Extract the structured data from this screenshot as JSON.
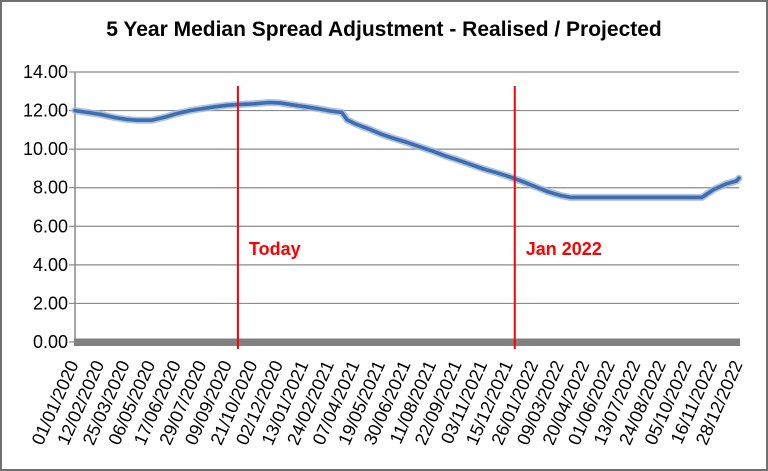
{
  "chart_data": {
    "type": "line",
    "title": "5 Year Median Spread Adjustment - Realised / Projected",
    "categories": [
      "01/01/2020",
      "12/02/2020",
      "25/03/2020",
      "06/05/2020",
      "17/06/2020",
      "29/07/2020",
      "09/09/2020",
      "21/10/2020",
      "02/12/2020",
      "13/01/2021",
      "24/02/2021",
      "07/04/2021",
      "19/05/2021",
      "30/06/2021",
      "11/08/2021",
      "22/09/2021",
      "03/11/2021",
      "15/12/2021",
      "26/01/2022",
      "09/03/2022",
      "20/04/2022",
      "01/06/2022",
      "13/07/2022",
      "24/08/2022",
      "05/10/2022",
      "16/11/2022",
      "28/12/2022"
    ],
    "values": [
      12.0,
      11.8,
      11.55,
      11.5,
      11.85,
      12.1,
      12.28,
      12.35,
      12.4,
      12.2,
      11.98,
      11.3,
      10.77,
      10.35,
      9.9,
      9.43,
      8.97,
      8.57,
      8.07,
      7.6,
      7.5,
      7.5,
      7.5,
      7.5,
      7.5,
      7.9,
      8.5
    ],
    "draw_points": [
      [
        0,
        12.0
      ],
      [
        0.5,
        11.9
      ],
      [
        1,
        11.8
      ],
      [
        1.5,
        11.65
      ],
      [
        2,
        11.55
      ],
      [
        2.4,
        11.5
      ],
      [
        3,
        11.5
      ],
      [
        3.5,
        11.65
      ],
      [
        4,
        11.85
      ],
      [
        4.5,
        12.0
      ],
      [
        5,
        12.1
      ],
      [
        5.5,
        12.2
      ],
      [
        6,
        12.28
      ],
      [
        6.5,
        12.32
      ],
      [
        7,
        12.35
      ],
      [
        7.6,
        12.42
      ],
      [
        8,
        12.4
      ],
      [
        8.5,
        12.3
      ],
      [
        9,
        12.2
      ],
      [
        9.5,
        12.1
      ],
      [
        10,
        11.98
      ],
      [
        10.45,
        11.9
      ],
      [
        10.65,
        11.52
      ],
      [
        11,
        11.3
      ],
      [
        11.5,
        11.05
      ],
      [
        12,
        10.77
      ],
      [
        12.5,
        10.55
      ],
      [
        13,
        10.35
      ],
      [
        13.5,
        10.12
      ],
      [
        14,
        9.9
      ],
      [
        14.5,
        9.65
      ],
      [
        15,
        9.43
      ],
      [
        15.5,
        9.2
      ],
      [
        16,
        8.97
      ],
      [
        16.5,
        8.78
      ],
      [
        17,
        8.57
      ],
      [
        17.5,
        8.33
      ],
      [
        18,
        8.07
      ],
      [
        18.5,
        7.8
      ],
      [
        19,
        7.6
      ],
      [
        19.4,
        7.5
      ],
      [
        20,
        7.5
      ],
      [
        21,
        7.5
      ],
      [
        22,
        7.5
      ],
      [
        23,
        7.5
      ],
      [
        24,
        7.5
      ],
      [
        24.55,
        7.5
      ],
      [
        25,
        7.9
      ],
      [
        25.5,
        8.2
      ],
      [
        25.9,
        8.35
      ],
      [
        26,
        8.5
      ]
    ],
    "ylim": [
      0,
      14
    ],
    "ytick_step": 2,
    "ytick_labels": [
      "0.00",
      "2.00",
      "4.00",
      "6.00",
      "8.00",
      "10.00",
      "12.00",
      "14.00"
    ],
    "grid": true,
    "legend": "none",
    "annotations": [
      {
        "label": "Today",
        "x_index": 6.38
      },
      {
        "label": "Jan 2022",
        "x_index": 17.22
      }
    ],
    "colors": {
      "line": "#3E6DB0",
      "line_halo": "#9DB8DC",
      "grid": "#8A8A8A",
      "axis": "#808080",
      "annotation": "#FF0000",
      "title": "#000000"
    }
  }
}
